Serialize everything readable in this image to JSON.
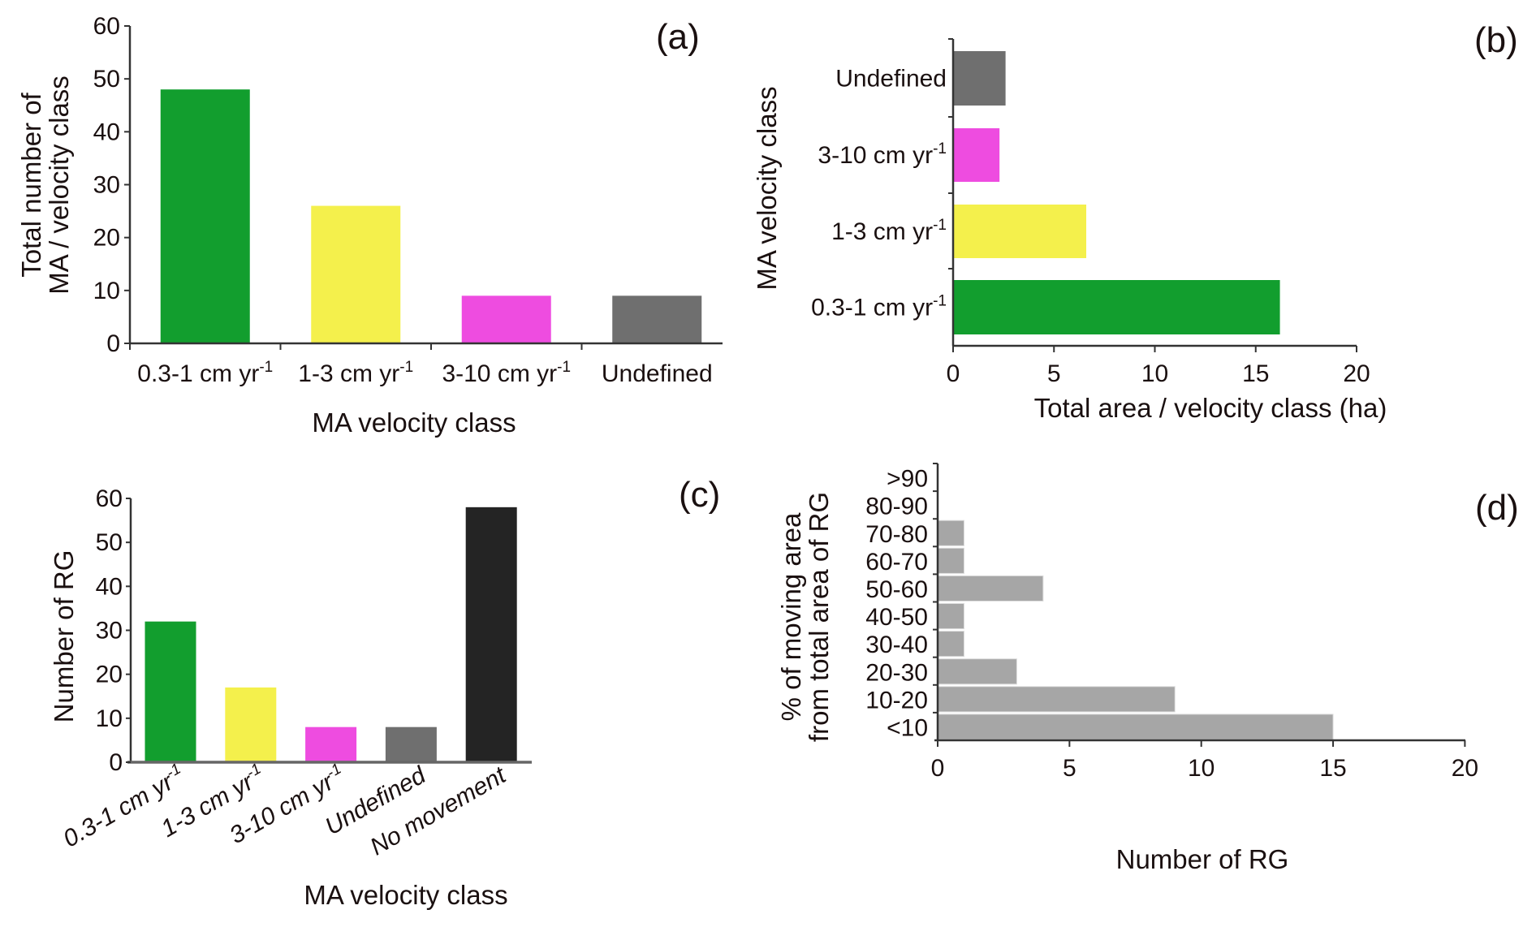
{
  "colors": {
    "green": "#129e2e",
    "yellow": "#f4f04c",
    "magenta": "#ee4ce0",
    "gray": "#6f6f6f",
    "black": "#242424",
    "lightgray": "#a6a6a6"
  },
  "chart_data": [
    {
      "id": "a",
      "panel_label": "(a)",
      "type": "bar",
      "orientation": "vertical",
      "categories": [
        "0.3-1 cm yr-1",
        "1-3 cm yr-1",
        "3-10 cm yr-1",
        "Undefined"
      ],
      "category_display": [
        {
          "main": "0.3-1 cm yr",
          "sup": "-1"
        },
        {
          "main": "1-3 cm yr",
          "sup": "-1"
        },
        {
          "main": "3-10 cm yr",
          "sup": "-1"
        },
        {
          "main": "Undefined",
          "sup": ""
        }
      ],
      "values": [
        48,
        26,
        9,
        9
      ],
      "bar_colors": [
        "green",
        "yellow",
        "magenta",
        "gray"
      ],
      "title": "",
      "xlabel": "MA velocity class",
      "ylabel_lines": [
        "Total number of",
        "MA / velocity class"
      ],
      "ylabel": "Total number of MA / velocity class",
      "ylim": [
        0,
        60
      ],
      "yticks": [
        0,
        10,
        20,
        30,
        40,
        50,
        60
      ],
      "grid": false
    },
    {
      "id": "b",
      "panel_label": "(b)",
      "type": "bar",
      "orientation": "horizontal",
      "categories": [
        "0.3-1 cm yr-1",
        "1-3 cm yr-1",
        "3-10 cm yr-1",
        "Undefined"
      ],
      "category_display": [
        {
          "main": "0.3-1 cm yr",
          "sup": "-1"
        },
        {
          "main": "1-3 cm yr",
          "sup": "-1"
        },
        {
          "main": "3-10 cm yr",
          "sup": "-1"
        },
        {
          "main": "Undefined",
          "sup": ""
        }
      ],
      "values": [
        16.2,
        6.6,
        2.3,
        2.6
      ],
      "bar_colors": [
        "green",
        "yellow",
        "magenta",
        "gray"
      ],
      "title": "",
      "xlabel": "Total area / velocity class (ha)",
      "ylabel": "MA velocity class",
      "xlim": [
        0,
        20
      ],
      "xticks": [
        0,
        5,
        10,
        15,
        20
      ],
      "grid": false
    },
    {
      "id": "c",
      "panel_label": "(c)",
      "type": "bar",
      "orientation": "vertical",
      "categories": [
        "0.3-1 cm yr-1",
        "1-3 cm yr-1",
        "3-10 cm yr-1",
        "Undefined",
        "No movement"
      ],
      "category_display": [
        {
          "main": "0.3-1 cm yr",
          "sup": "-1"
        },
        {
          "main": "1-3 cm yr",
          "sup": "-1"
        },
        {
          "main": "3-10 cm yr",
          "sup": "-1"
        },
        {
          "main": "Undefined",
          "sup": ""
        },
        {
          "main": "No movement",
          "sup": ""
        }
      ],
      "values": [
        32,
        17,
        8,
        8,
        58
      ],
      "bar_colors": [
        "green",
        "yellow",
        "magenta",
        "gray",
        "black"
      ],
      "title": "",
      "xlabel": "MA velocity class",
      "ylabel": "Number of RG",
      "ylim": [
        0,
        60
      ],
      "yticks": [
        0,
        10,
        20,
        30,
        40,
        50,
        60
      ],
      "grid": false
    },
    {
      "id": "d",
      "panel_label": "(d)",
      "type": "bar",
      "orientation": "horizontal",
      "categories": [
        "<10",
        "10-20",
        "20-30",
        "30-40",
        "40-50",
        "50-60",
        "60-70",
        "70-80",
        "80-90",
        ">90"
      ],
      "values": [
        15,
        9,
        3,
        1,
        1,
        4,
        1,
        1,
        0,
        0
      ],
      "bar_colors": [
        "lightgray"
      ],
      "title": "",
      "xlabel": "Number of RG",
      "ylabel_lines": [
        "% of moving area",
        "from total area of RG"
      ],
      "ylabel": "% of moving area from total area of RG",
      "xlim": [
        0,
        20
      ],
      "xticks": [
        0,
        5,
        10,
        15,
        20
      ],
      "grid": false
    }
  ]
}
